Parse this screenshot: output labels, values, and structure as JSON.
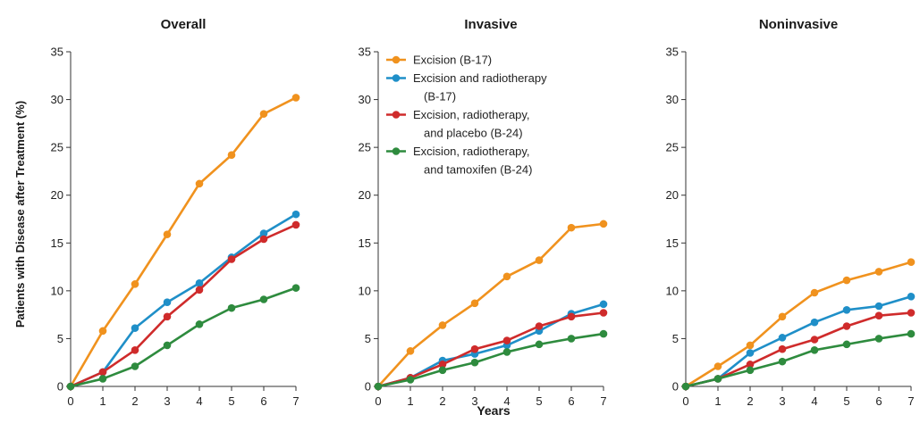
{
  "figure": {
    "ylabel": "Patients with Disease after Treatment  (%)",
    "xlabel": "Years"
  },
  "legend": [
    {
      "lines": [
        "Excision (B-17)"
      ],
      "color": "#f0921e"
    },
    {
      "lines": [
        "Excision and radiotherapy",
        "(B-17)"
      ],
      "color": "#1f8fc8"
    },
    {
      "lines": [
        "Excision, radiotherapy,",
        "and placebo (B-24)"
      ],
      "color": "#cf2b2b"
    },
    {
      "lines": [
        "Excision, radiotherapy,",
        "and tamoxifen (B-24)"
      ],
      "color": "#2e8b3e"
    }
  ],
  "chart_data": [
    {
      "type": "line",
      "title": "Overall",
      "x": [
        0,
        1,
        2,
        3,
        4,
        5,
        6,
        7
      ],
      "ylim": [
        0,
        35
      ],
      "yticks": [
        0,
        5,
        10,
        15,
        20,
        25,
        30,
        35
      ],
      "series": [
        {
          "name": "Excision (B-17)",
          "color": "#f0921e",
          "values": [
            0,
            5.8,
            10.7,
            15.9,
            21.2,
            24.2,
            28.5,
            30.2
          ]
        },
        {
          "name": "Excision and radiotherapy (B-17)",
          "color": "#1f8fc8",
          "values": [
            0,
            1.5,
            6.1,
            8.8,
            10.8,
            13.5,
            16.0,
            18.0
          ]
        },
        {
          "name": "Excision, radiotherapy, and placebo (B-24)",
          "color": "#cf2b2b",
          "values": [
            0,
            1.5,
            3.8,
            7.3,
            10.1,
            13.3,
            15.4,
            16.9
          ]
        },
        {
          "name": "Excision, radiotherapy, and tamoxifen (B-24)",
          "color": "#2e8b3e",
          "values": [
            0,
            0.8,
            2.1,
            4.3,
            6.5,
            8.2,
            9.1,
            10.3
          ]
        }
      ]
    },
    {
      "type": "line",
      "title": "Invasive",
      "x": [
        0,
        1,
        2,
        3,
        4,
        5,
        6,
        7
      ],
      "ylim": [
        0,
        35
      ],
      "yticks": [
        0,
        5,
        10,
        15,
        20,
        25,
        30,
        35
      ],
      "series": [
        {
          "name": "Excision (B-17)",
          "color": "#f0921e",
          "values": [
            0,
            3.7,
            6.4,
            8.7,
            11.5,
            13.2,
            16.6,
            17.0
          ]
        },
        {
          "name": "Excision and radiotherapy (B-17)",
          "color": "#1f8fc8",
          "values": [
            0,
            0.9,
            2.7,
            3.4,
            4.3,
            5.8,
            7.6,
            8.6
          ]
        },
        {
          "name": "Excision, radiotherapy, and placebo (B-24)",
          "color": "#cf2b2b",
          "values": [
            0,
            0.9,
            2.3,
            3.9,
            4.8,
            6.3,
            7.3,
            7.7
          ]
        },
        {
          "name": "Excision, radiotherapy, and tamoxifen (B-24)",
          "color": "#2e8b3e",
          "values": [
            0,
            0.7,
            1.7,
            2.5,
            3.6,
            4.4,
            5.0,
            5.5
          ]
        }
      ]
    },
    {
      "type": "line",
      "title": "Noninvasive",
      "x": [
        0,
        1,
        2,
        3,
        4,
        5,
        6,
        7
      ],
      "ylim": [
        0,
        35
      ],
      "yticks": [
        0,
        5,
        10,
        15,
        20,
        25,
        30,
        35
      ],
      "series": [
        {
          "name": "Excision (B-17)",
          "color": "#f0921e",
          "values": [
            0,
            2.1,
            4.3,
            7.3,
            9.8,
            11.1,
            12.0,
            13.0
          ]
        },
        {
          "name": "Excision and radiotherapy (B-17)",
          "color": "#1f8fc8",
          "values": [
            0,
            0.8,
            3.5,
            5.1,
            6.7,
            8.0,
            8.4,
            9.4
          ]
        },
        {
          "name": "Excision, radiotherapy, and placebo (B-24)",
          "color": "#cf2b2b",
          "values": [
            0,
            0.8,
            2.3,
            3.9,
            4.9,
            6.3,
            7.4,
            7.7
          ]
        },
        {
          "name": "Excision, radiotherapy, and tamoxifen (B-24)",
          "color": "#2e8b3e",
          "values": [
            0,
            0.8,
            1.7,
            2.6,
            3.8,
            4.4,
            5.0,
            5.5
          ]
        }
      ]
    }
  ]
}
